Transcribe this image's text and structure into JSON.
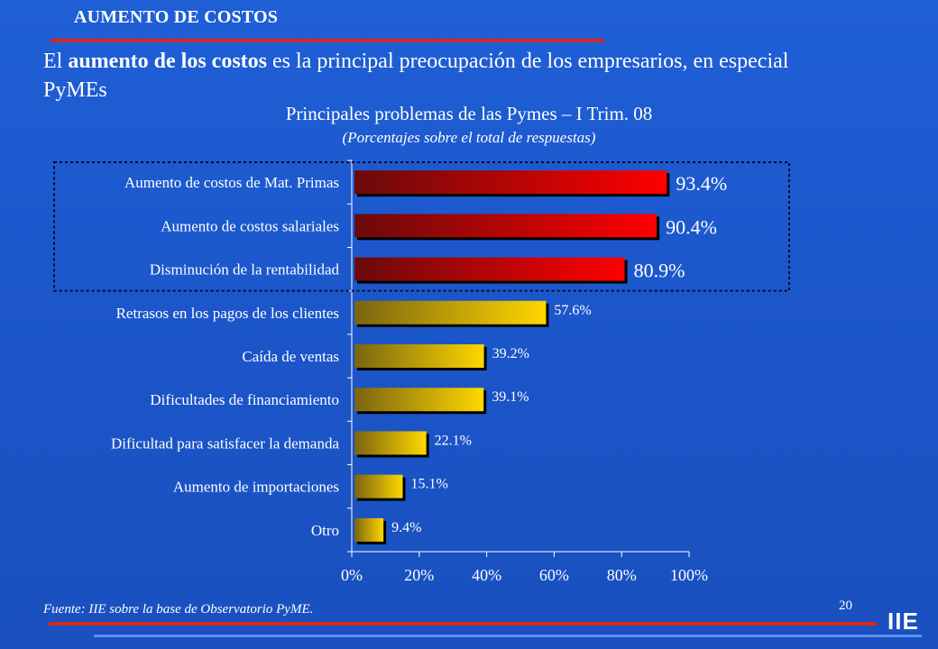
{
  "header": {
    "section_title": "AUMENTO DE COSTOS",
    "headline_pre": "El ",
    "headline_bold": "aumento de los costos",
    "headline_post": " es la principal preocupación de los empresarios, en especial PyMEs"
  },
  "footer": {
    "source": "Fuente: IIE sobre la base de Observatorio PyME.",
    "page_number": "20",
    "logo": "IIE"
  },
  "colors": {
    "highlight_light": "#ff0000",
    "highlight_dark": "#6a0a0a",
    "normal_light": "#ffd700",
    "normal_dark": "#7a6410",
    "highlight_box": "#0a0a2a"
  },
  "chart_data": {
    "type": "bar",
    "orientation": "horizontal",
    "title": "Principales problemas de las Pymes – I Trim. 08",
    "subtitle": "(Porcentajes sobre el total de respuestas)",
    "categories": [
      "Aumento de costos de Mat. Primas",
      "Aumento de costos salariales",
      "Disminución de la rentabilidad",
      "Retrasos en los pagos de los clientes",
      "Caída de ventas",
      "Dificultades de financiamiento",
      "Dificultad para satisfacer la demanda",
      "Aumento de importaciones",
      "Otro"
    ],
    "values": [
      93.4,
      90.4,
      80.9,
      57.6,
      39.2,
      39.1,
      22.1,
      15.1,
      9.4
    ],
    "value_labels": [
      "93.4%",
      "90.4%",
      "80.9%",
      "57.6%",
      "39.2%",
      "39.1%",
      "22.1%",
      "15.1%",
      "9.4%"
    ],
    "highlighted_count": 3,
    "xlim": [
      0,
      100
    ],
    "xticks": [
      0,
      20,
      40,
      60,
      80,
      100
    ],
    "xtick_labels": [
      "0%",
      "20%",
      "40%",
      "60%",
      "80%",
      "100%"
    ],
    "xlabel": "",
    "ylabel": "",
    "grid": false,
    "legend": "none"
  }
}
